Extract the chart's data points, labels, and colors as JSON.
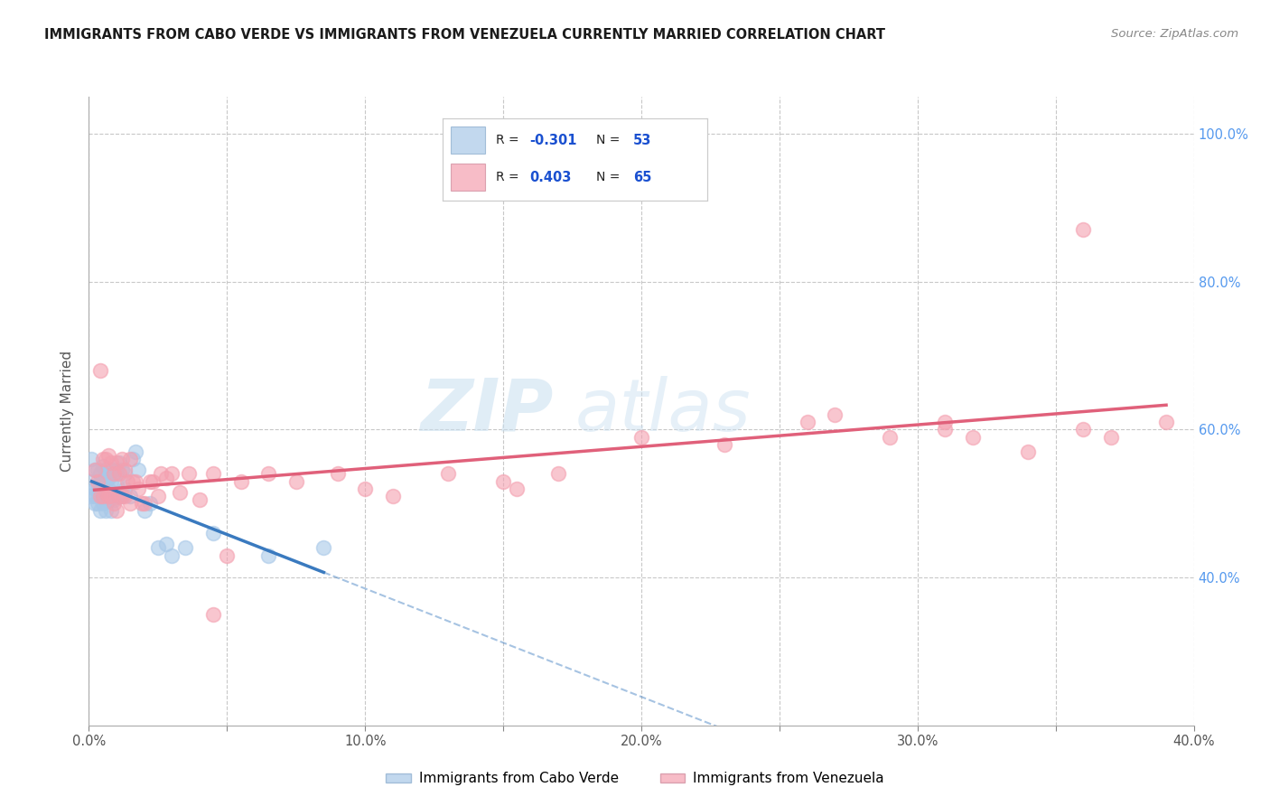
{
  "title": "IMMIGRANTS FROM CABO VERDE VS IMMIGRANTS FROM VENEZUELA CURRENTLY MARRIED CORRELATION CHART",
  "source": "Source: ZipAtlas.com",
  "ylabel": "Currently Married",
  "x_label_bottom_legend1": "Immigrants from Cabo Verde",
  "x_label_bottom_legend2": "Immigrants from Venezuela",
  "xlim": [
    0.0,
    0.4
  ],
  "ylim": [
    0.2,
    1.05
  ],
  "x_ticks": [
    0.0,
    0.05,
    0.1,
    0.15,
    0.2,
    0.25,
    0.3,
    0.35,
    0.4
  ],
  "y_ticks": [
    0.4,
    0.6,
    0.8,
    1.0
  ],
  "y_tick_labels": [
    "40.0%",
    "60.0%",
    "80.0%",
    "100.0%"
  ],
  "x_tick_labels": [
    "0.0%",
    "",
    "10.0%",
    "",
    "20.0%",
    "",
    "30.0%",
    "",
    "40.0%"
  ],
  "series1_color": "#a8c8e8",
  "series2_color": "#f4a0b0",
  "series1_R": -0.301,
  "series1_N": 53,
  "series2_R": 0.403,
  "series2_N": 65,
  "series1_line_color": "#3a7abf",
  "series2_line_color": "#e0607a",
  "legend_R_color": "#1a50d0",
  "watermark_zip": "ZIP",
  "watermark_atlas": "atlas",
  "background_color": "#ffffff",
  "grid_color": "#c8c8c8",
  "series1_x": [
    0.001,
    0.001,
    0.001,
    0.002,
    0.002,
    0.002,
    0.002,
    0.003,
    0.003,
    0.003,
    0.003,
    0.004,
    0.004,
    0.004,
    0.004,
    0.005,
    0.005,
    0.005,
    0.005,
    0.006,
    0.006,
    0.006,
    0.006,
    0.007,
    0.007,
    0.007,
    0.008,
    0.008,
    0.008,
    0.009,
    0.009,
    0.01,
    0.01,
    0.01,
    0.011,
    0.011,
    0.012,
    0.012,
    0.013,
    0.013,
    0.015,
    0.016,
    0.017,
    0.018,
    0.02,
    0.022,
    0.025,
    0.028,
    0.03,
    0.035,
    0.045,
    0.065,
    0.085
  ],
  "series1_y": [
    0.56,
    0.53,
    0.51,
    0.545,
    0.52,
    0.51,
    0.5,
    0.545,
    0.525,
    0.51,
    0.5,
    0.54,
    0.53,
    0.51,
    0.49,
    0.55,
    0.53,
    0.51,
    0.5,
    0.545,
    0.53,
    0.51,
    0.49,
    0.535,
    0.52,
    0.505,
    0.545,
    0.53,
    0.49,
    0.545,
    0.505,
    0.54,
    0.525,
    0.51,
    0.555,
    0.51,
    0.545,
    0.51,
    0.54,
    0.52,
    0.51,
    0.56,
    0.57,
    0.545,
    0.49,
    0.5,
    0.44,
    0.445,
    0.43,
    0.44,
    0.46,
    0.43,
    0.44
  ],
  "series2_x": [
    0.002,
    0.003,
    0.004,
    0.004,
    0.005,
    0.005,
    0.006,
    0.006,
    0.007,
    0.007,
    0.008,
    0.008,
    0.009,
    0.009,
    0.01,
    0.01,
    0.011,
    0.011,
    0.012,
    0.012,
    0.013,
    0.013,
    0.014,
    0.015,
    0.015,
    0.016,
    0.017,
    0.018,
    0.019,
    0.02,
    0.022,
    0.023,
    0.025,
    0.026,
    0.028,
    0.03,
    0.033,
    0.036,
    0.04,
    0.045,
    0.05,
    0.055,
    0.065,
    0.075,
    0.09,
    0.11,
    0.13,
    0.15,
    0.17,
    0.2,
    0.23,
    0.26,
    0.29,
    0.31,
    0.34,
    0.36,
    0.37,
    0.27,
    0.31,
    0.32,
    0.045,
    0.1,
    0.155,
    0.36,
    0.39
  ],
  "series2_y": [
    0.545,
    0.53,
    0.68,
    0.51,
    0.56,
    0.51,
    0.56,
    0.515,
    0.565,
    0.51,
    0.555,
    0.51,
    0.54,
    0.5,
    0.555,
    0.49,
    0.54,
    0.51,
    0.56,
    0.51,
    0.545,
    0.51,
    0.53,
    0.56,
    0.5,
    0.53,
    0.53,
    0.52,
    0.5,
    0.5,
    0.53,
    0.53,
    0.51,
    0.54,
    0.535,
    0.54,
    0.515,
    0.54,
    0.505,
    0.54,
    0.43,
    0.53,
    0.54,
    0.53,
    0.54,
    0.51,
    0.54,
    0.53,
    0.54,
    0.59,
    0.58,
    0.61,
    0.59,
    0.6,
    0.57,
    0.6,
    0.59,
    0.62,
    0.61,
    0.59,
    0.35,
    0.52,
    0.52,
    0.87,
    0.61
  ]
}
